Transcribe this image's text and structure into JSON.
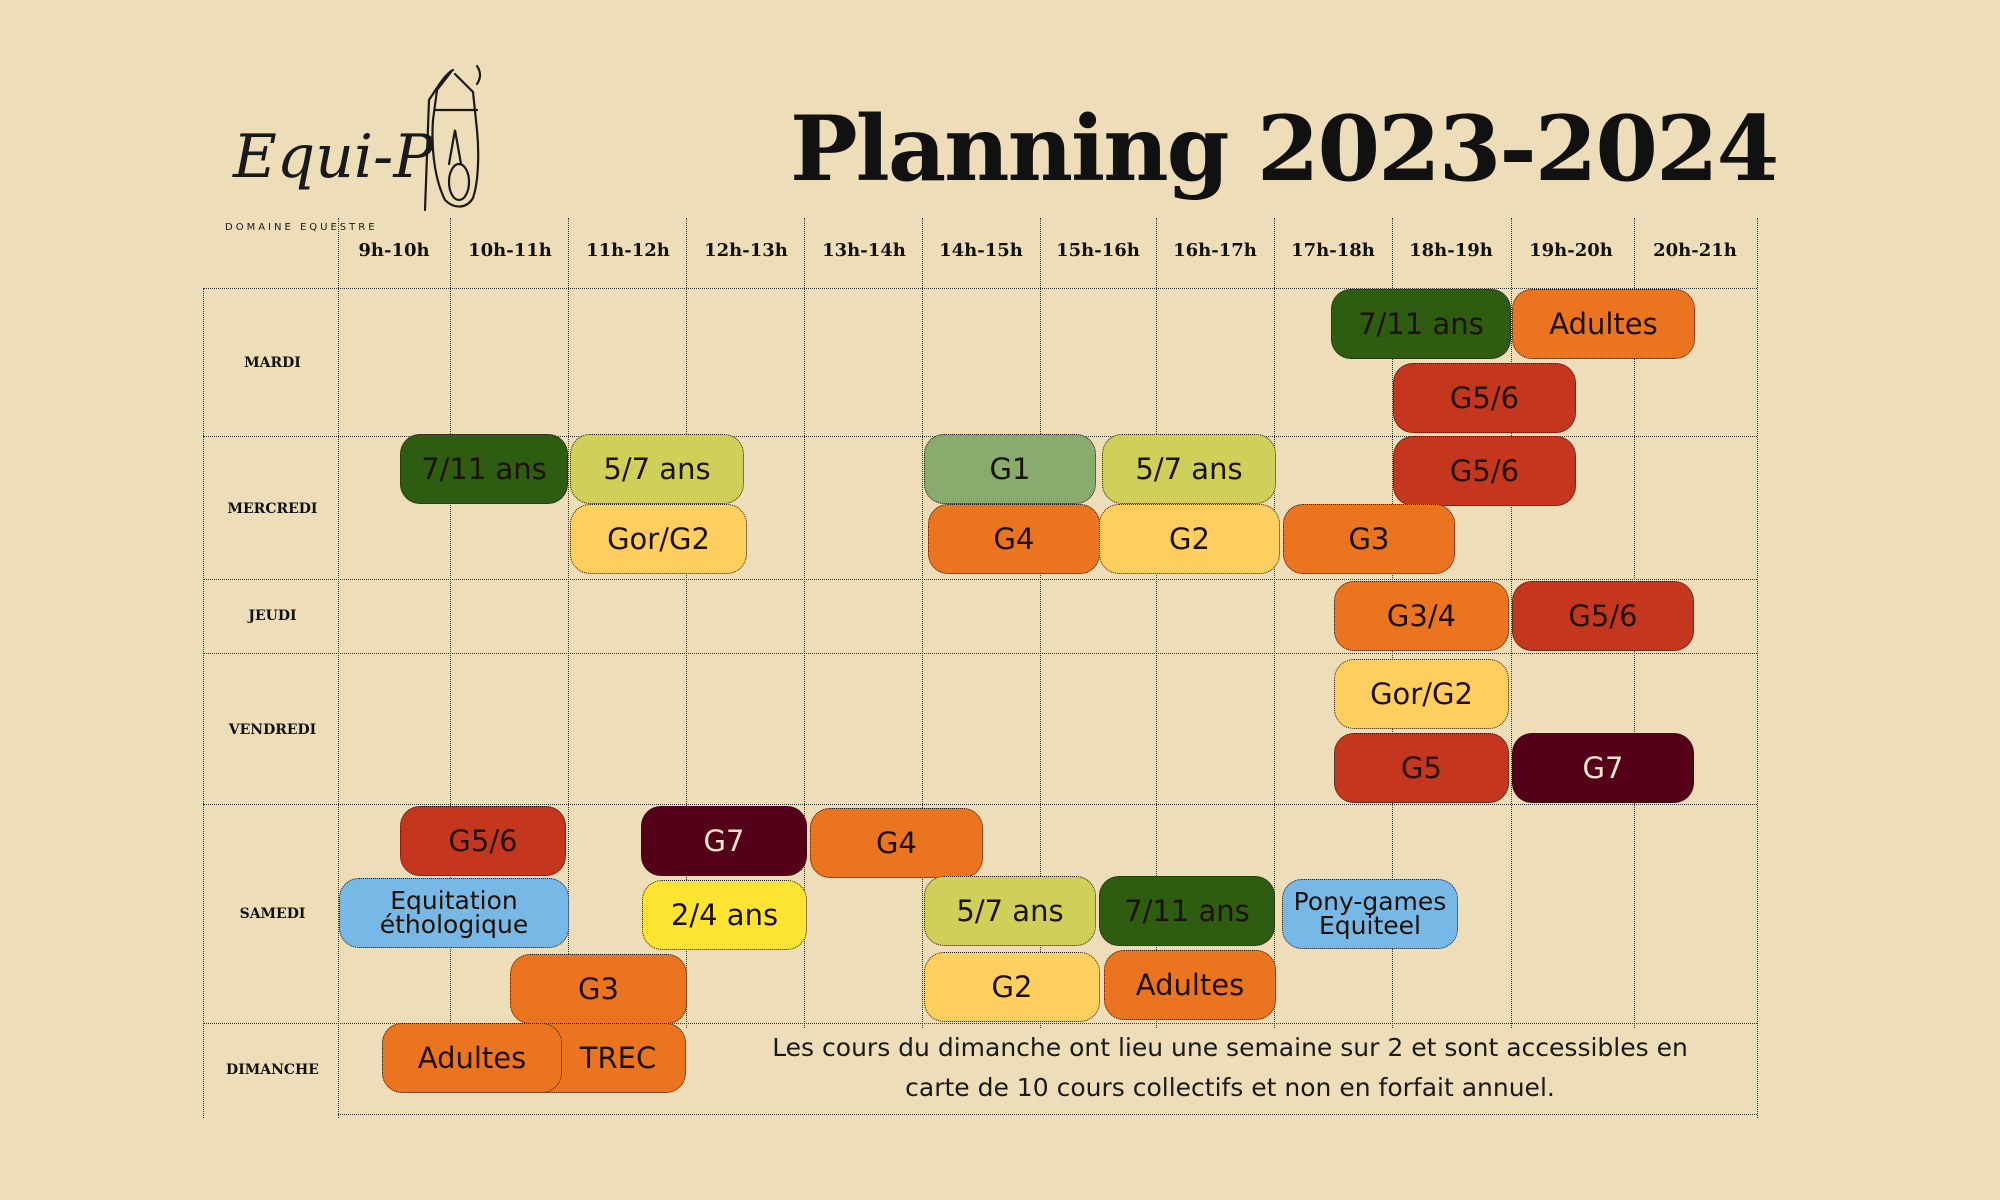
{
  "title": "Planning 2023-2024",
  "logo": {
    "name": "Equi-P",
    "subtitle": "DOMAINE EQUESTRE"
  },
  "colors": {
    "background": "#EEDDB9",
    "dark_green": "#2E5C10",
    "sage_green": "#8AAB6E",
    "lime": "#CED05A",
    "orange": "#EB7420",
    "red": "#C5361F",
    "maroon": "#540018",
    "light_yellow": "#FECE5E",
    "yellow": "#FDE432",
    "blue": "#78B8E6"
  },
  "time_slots": [
    "9h-10h",
    "10h-11h",
    "11h-12h",
    "12h-13h",
    "13h-14h",
    "14h-15h",
    "15h-16h",
    "16h-17h",
    "17h-18h",
    "18h-19h",
    "19h-20h",
    "20h-21h"
  ],
  "days": [
    "MARDI",
    "MERCREDI",
    "JEUDI",
    "VENDREDI",
    "SAMEDI",
    "DIMANCHE"
  ],
  "courses": {
    "mardi": [
      "7/11 ans",
      "Adultes",
      "G5/6"
    ],
    "mercredi": [
      "7/11 ans",
      "5/7 ans",
      "G1",
      "5/7 ans",
      "G5/6",
      "Gor/G2",
      "G4",
      "G2",
      "G3"
    ],
    "jeudi": [
      "G3/4",
      "G5/6"
    ],
    "vendredi": [
      "Gor/G2",
      "G5",
      "G7"
    ],
    "samedi": [
      "G5/6",
      "G7",
      "G4",
      "Equitation éthologique",
      "2/4 ans",
      "5/7 ans",
      "7/11 ans",
      "Pony-games Equiteel",
      "G3",
      "G2",
      "Adultes"
    ],
    "dimanche": [
      "TREC",
      "Adultes"
    ]
  },
  "note": "Les cours du dimanche ont lieu une semaine sur 2 et sont accessibles en carte de 10 cours collectifs et non en forfait annuel.",
  "icons": [
    "horse-head-logo-icon"
  ]
}
